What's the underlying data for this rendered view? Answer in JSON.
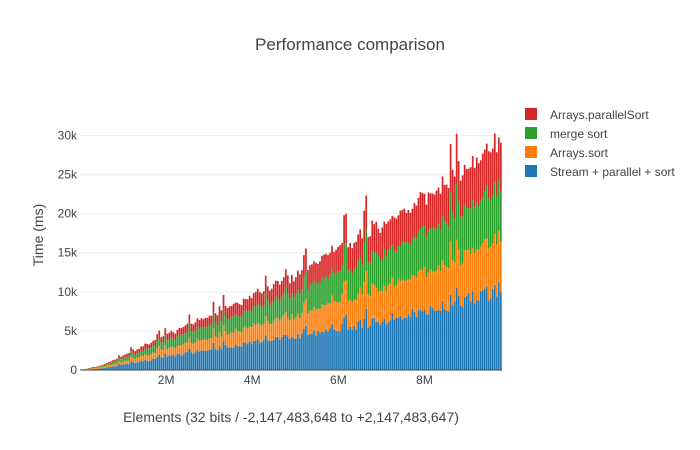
{
  "chart_data": {
    "type": "bar",
    "barmode": "stack",
    "title": "Performance comparison",
    "xlabel": "Elements (32 bits / -2,147,483,648 to +2,147,483,647)",
    "ylabel": "Time (ms)",
    "xlim": [
      0,
      9800000
    ],
    "ylim": [
      0,
      33000
    ],
    "x_ticks": [
      {
        "value": 2000000,
        "label": "2M"
      },
      {
        "value": 4000000,
        "label": "4M"
      },
      {
        "value": 6000000,
        "label": "6M"
      },
      {
        "value": 8000000,
        "label": "8M"
      }
    ],
    "y_ticks": [
      {
        "value": 0,
        "label": "0"
      },
      {
        "value": 5000,
        "label": "5k"
      },
      {
        "value": 10000,
        "label": "10k"
      },
      {
        "value": 15000,
        "label": "15k"
      },
      {
        "value": 20000,
        "label": "20k"
      },
      {
        "value": 25000,
        "label": "25k"
      },
      {
        "value": 30000,
        "label": "30k"
      }
    ],
    "grid": "horizontal",
    "legend_position": "top-right",
    "x": [
      0,
      500000,
      1000000,
      1500000,
      2000000,
      2500000,
      3000000,
      3500000,
      4000000,
      4500000,
      5000000,
      5500000,
      6000000,
      6500000,
      7000000,
      7500000,
      8000000,
      8500000,
      9000000,
      9500000,
      9750000
    ],
    "series": [
      {
        "name": "Stream + parallel + sort",
        "color": "#1f77b4",
        "values": [
          0,
          200,
          700,
          1200,
          1700,
          2200,
          2700,
          3100,
          3600,
          4100,
          4600,
          5100,
          5700,
          6100,
          6600,
          7200,
          7800,
          8500,
          9300,
          10200,
          10800
        ]
      },
      {
        "name": "Arrays.sort",
        "color": "#ff7f0e",
        "values": [
          0,
          150,
          400,
          700,
          1000,
          1300,
          1600,
          1900,
          2200,
          2500,
          2800,
          3200,
          3600,
          4000,
          4400,
          4800,
          5200,
          5600,
          6000,
          6400,
          6600
        ]
      },
      {
        "name": "merge sort",
        "color": "#2ca02c",
        "values": [
          0,
          150,
          450,
          750,
          1100,
          1400,
          1700,
          2000,
          2300,
          2700,
          3000,
          3400,
          3800,
          4200,
          4500,
          4900,
          5300,
          5700,
          6100,
          6500,
          6700
        ]
      },
      {
        "name": "Arrays.parallelSort",
        "color": "#d62728",
        "values": [
          0,
          100,
          350,
          600,
          850,
          1050,
          1250,
          1500,
          1800,
          2100,
          2400,
          2800,
          3200,
          3600,
          3900,
          4300,
          4700,
          5100,
          5500,
          6000,
          6200
        ]
      }
    ]
  }
}
